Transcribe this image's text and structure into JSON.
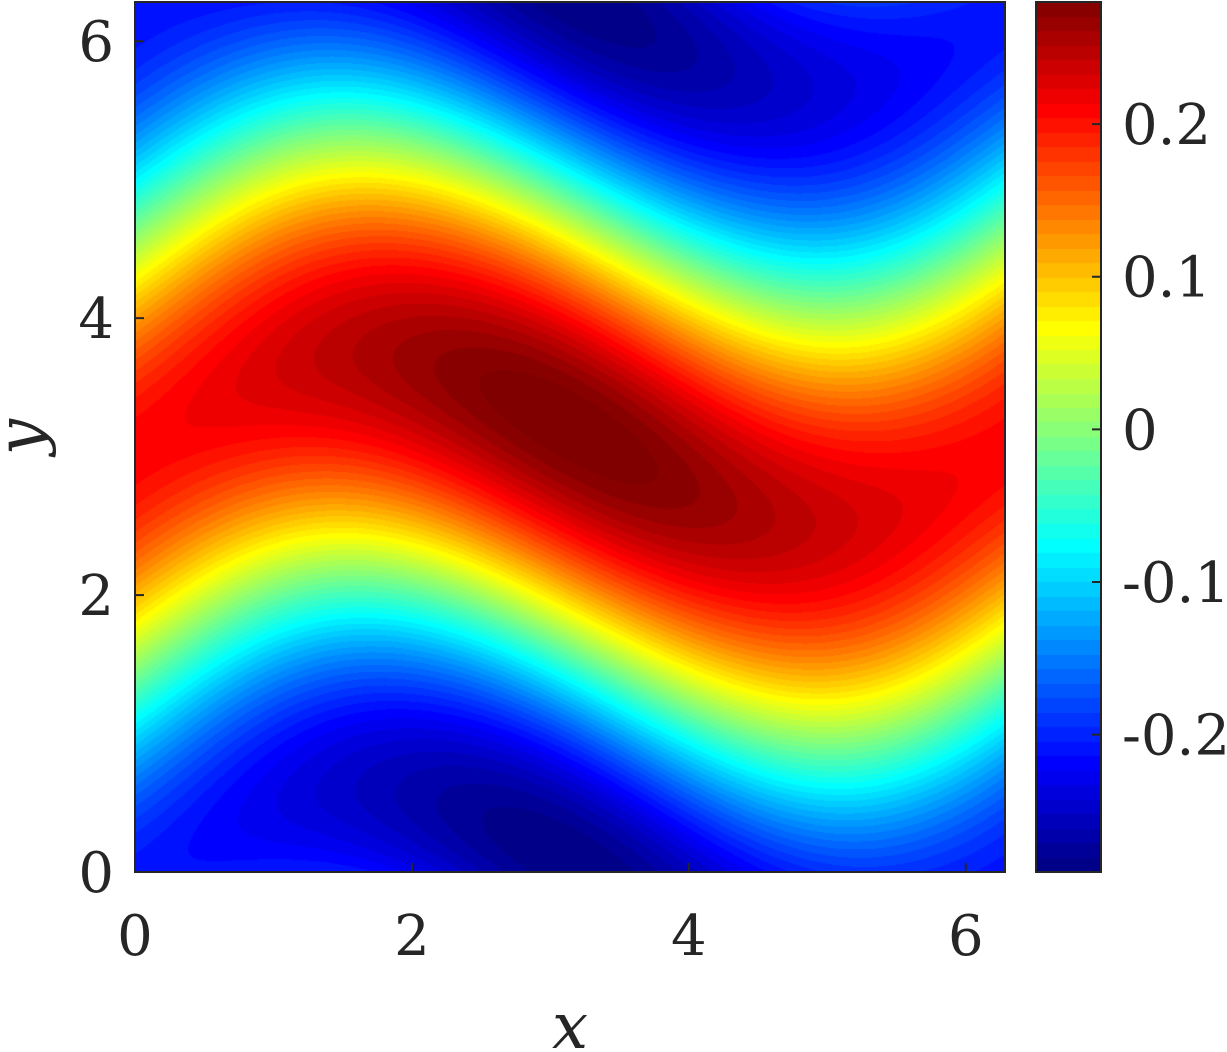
{
  "chart_data": {
    "type": "heatmap",
    "title": "",
    "xlabel": "x",
    "ylabel": "y",
    "xlim": [
      0,
      6.2832
    ],
    "ylim": [
      0,
      6.2832
    ],
    "x_ticks": [
      0,
      2,
      4,
      6
    ],
    "x_tick_labels": [
      "0",
      "2",
      "4",
      "6"
    ],
    "y_ticks": [
      0,
      2,
      4,
      6
    ],
    "y_tick_labels": [
      "0",
      "2",
      "4",
      "6"
    ],
    "grid": false,
    "colormap": "jet",
    "colorbar": {
      "range": [
        -0.29,
        0.28
      ],
      "ticks": [
        0.2,
        0.1,
        0,
        -0.1,
        -0.2
      ],
      "tick_labels": [
        "0.2",
        "0.1",
        "0",
        "-0.1",
        "-0.2"
      ]
    },
    "features": {
      "max": {
        "x": 3.1,
        "y": 3.2,
        "value": 0.28
      },
      "min_bottom": {
        "x": 3.5,
        "y": 0.3,
        "value": -0.29
      },
      "min_top": {
        "x": 2.9,
        "y": 6.0,
        "value": -0.29
      }
    },
    "field_description": "smooth periodic scalar field, band of high values around y≈π tilted diagonally; low values near y=0 and y=2π"
  }
}
